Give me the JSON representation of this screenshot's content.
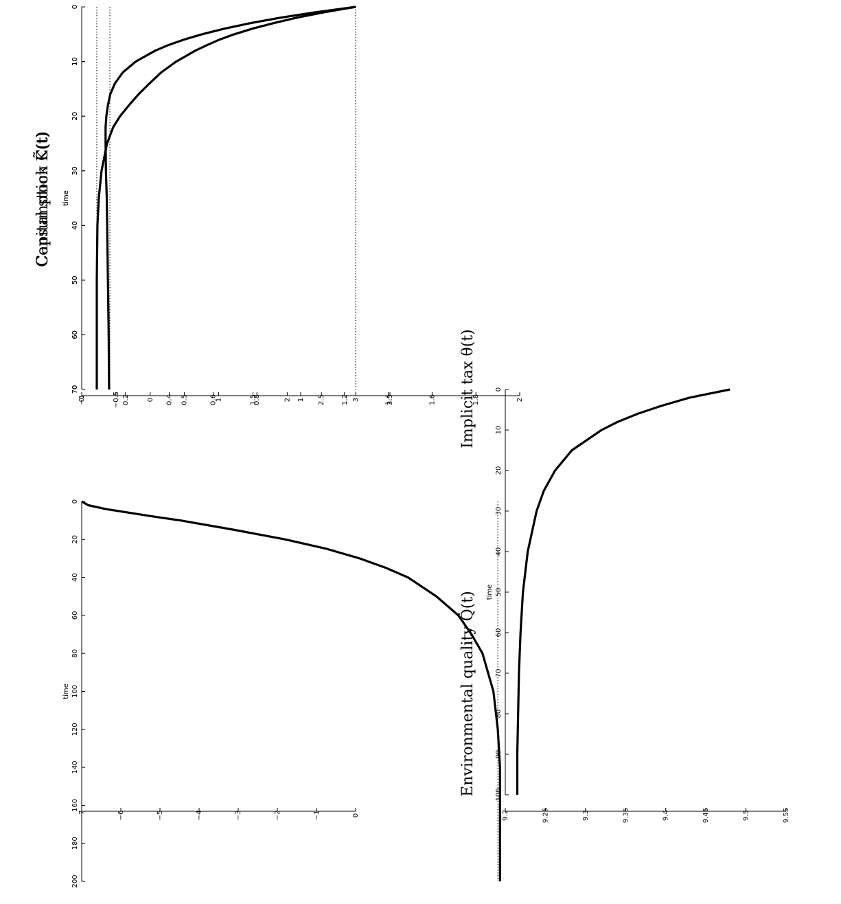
{
  "chart_data": [
    {
      "type": "line",
      "title": "Consumption C̃(t)",
      "xlabel": "time",
      "xlim": [
        0,
        70
      ],
      "ylim": [
        -1,
        3.5
      ],
      "xticks": [
        0,
        10,
        20,
        30,
        40,
        50,
        60,
        70
      ],
      "xtick_labels": [
        "0",
        "10",
        "20",
        "30",
        "40",
        "50",
        "60",
        "70"
      ],
      "yticks": [
        -1,
        -0.5,
        0,
        0.5,
        1,
        1.5,
        2,
        2.5,
        3,
        3.5
      ],
      "ytick_labels": [
        "−1",
        "−0.5",
        "0",
        "0.5",
        "1",
        "1.5",
        "2",
        "2.5",
        "3",
        "3.5"
      ],
      "reference_lines": [
        {
          "y": 3.0,
          "style": "dotted"
        },
        {
          "y": -0.78,
          "style": "dotted"
        }
      ],
      "series": [
        {
          "x": [
            0,
            1,
            2,
            3,
            4,
            5,
            6,
            7,
            8,
            10,
            12,
            14,
            16,
            18,
            20,
            22,
            25,
            30,
            35,
            40,
            50,
            60,
            70
          ],
          "y": [
            3.0,
            2.53,
            2.13,
            1.79,
            1.49,
            1.23,
            1.01,
            0.83,
            0.66,
            0.38,
            0.16,
            -0.01,
            -0.17,
            -0.31,
            -0.44,
            -0.54,
            -0.63,
            -0.71,
            -0.75,
            -0.77,
            -0.78,
            -0.78,
            -0.78
          ]
        }
      ],
      "grid": false
    },
    {
      "type": "line",
      "title": "Capital stock K̃(t)",
      "xlabel": "time",
      "xlim": [
        0,
        70
      ],
      "ylim": [
        -7,
        0
      ],
      "xticks": [
        0,
        10,
        20,
        30,
        40,
        50,
        60,
        70
      ],
      "xtick_labels": [
        "0",
        "10",
        "20",
        "30",
        "40",
        "50",
        "60",
        "70"
      ],
      "yticks": [
        -7,
        -6,
        -5,
        -4,
        -3,
        -2,
        -1,
        0
      ],
      "ytick_labels": [
        "−7",
        "−6",
        "−5",
        "−4",
        "−3",
        "−2",
        "−1",
        "0"
      ],
      "reference_lines": [
        {
          "y": 0,
          "style": "dotted"
        },
        {
          "y": -6.28,
          "style": "dotted"
        }
      ],
      "series": [
        {
          "x": [
            0,
            1,
            2,
            3,
            4,
            5,
            6,
            7,
            8,
            10,
            12,
            14,
            16,
            18,
            20,
            22,
            25,
            30,
            35,
            40,
            50,
            60,
            70
          ],
          "y": [
            0,
            -1.04,
            -1.94,
            -2.71,
            -3.36,
            -3.92,
            -4.39,
            -4.79,
            -5.12,
            -5.62,
            -5.95,
            -6.15,
            -6.27,
            -6.33,
            -6.37,
            -6.39,
            -6.39,
            -6.38,
            -6.36,
            -6.35,
            -6.33,
            -6.31,
            -6.3
          ]
        }
      ],
      "grid": false
    },
    {
      "type": "line",
      "title": "Environmental quality Q̃(t)",
      "xlabel": "time",
      "xlim": [
        0,
        200
      ],
      "ylim": [
        0,
        2
      ],
      "xticks": [
        0,
        20,
        40,
        60,
        80,
        100,
        120,
        140,
        160,
        180,
        200
      ],
      "xtick_labels": [
        "0",
        "20",
        "40",
        "60",
        "80",
        "100",
        "120",
        "140",
        "160",
        "180",
        "200"
      ],
      "yticks": [
        0,
        0.2,
        0.4,
        0.6,
        0.8,
        1,
        1.2,
        1.4,
        1.6,
        1.8,
        2
      ],
      "ytick_labels": [
        "0",
        "0.2",
        "0.4",
        "0.6",
        "0.8",
        "1",
        "1.2",
        "1.4",
        "1.6",
        "1.8",
        "2"
      ],
      "reference_lines": [
        {
          "y": 1.9,
          "style": "dotted"
        }
      ],
      "series": [
        {
          "x": [
            0,
            2,
            4,
            6,
            8,
            10,
            15,
            20,
            25,
            30,
            35,
            40,
            50,
            60,
            70,
            80,
            100,
            120,
            140,
            160,
            180,
            200
          ],
          "y": [
            0,
            0.03,
            0.11,
            0.22,
            0.33,
            0.45,
            0.7,
            0.93,
            1.12,
            1.27,
            1.39,
            1.49,
            1.62,
            1.72,
            1.78,
            1.83,
            1.88,
            1.9,
            1.91,
            1.91,
            1.91,
            1.91
          ]
        }
      ],
      "grid": false
    },
    {
      "type": "line",
      "title": "Implicit tax θ(t)",
      "xlabel": "time",
      "xlim": [
        0,
        100
      ],
      "ylim": [
        9.2,
        9.55
      ],
      "xticks": [
        0,
        10,
        20,
        30,
        40,
        50,
        60,
        70,
        80,
        90,
        100
      ],
      "xtick_labels": [
        "0",
        "10",
        "20",
        "30",
        "40",
        "50",
        "60",
        "70",
        "80",
        "90",
        "100"
      ],
      "yticks": [
        9.2,
        9.25,
        9.3,
        9.35,
        9.4,
        9.45,
        9.5,
        9.55
      ],
      "ytick_labels": [
        "9.2",
        "9.25",
        "9.3",
        "9.35",
        "9.4",
        "9.45",
        "9.5",
        "9.55"
      ],
      "reference_lines": [],
      "series": [
        {
          "x": [
            0,
            2,
            4,
            6,
            8,
            10,
            15,
            20,
            25,
            30,
            40,
            50,
            60,
            70,
            80,
            90,
            100
          ],
          "y": [
            9.48,
            9.43,
            9.395,
            9.365,
            9.34,
            9.32,
            9.283,
            9.262,
            9.248,
            9.239,
            9.228,
            9.222,
            9.219,
            9.217,
            9.216,
            9.215,
            9.215
          ]
        }
      ],
      "grid": false
    }
  ]
}
